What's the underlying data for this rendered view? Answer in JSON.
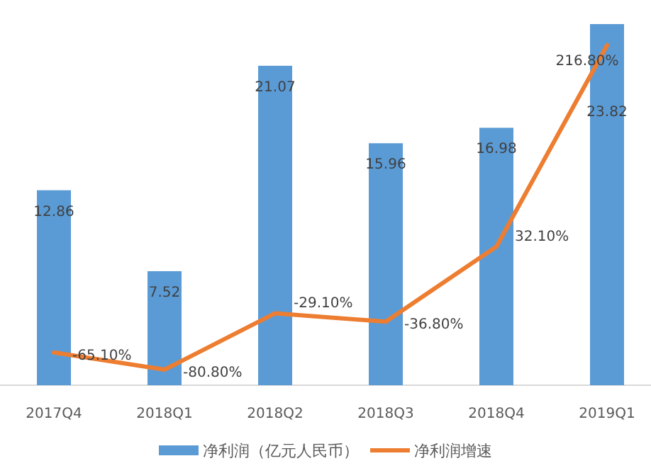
{
  "chart_data": {
    "type": "bar",
    "categories": [
      "2017Q4",
      "2018Q1",
      "2018Q2",
      "2018Q3",
      "2018Q4",
      "2019Q1"
    ],
    "legend": "bottom",
    "grid": false,
    "series": [
      {
        "name": "净利润（亿元人民币）",
        "color": "#5b9bd5",
        "values": [
          12.86,
          7.52,
          21.07,
          15.96,
          16.98,
          23.82
        ],
        "value_labels": [
          "12.86",
          "7.52",
          "21.07",
          "15.96",
          "16.98",
          "23.82"
        ]
      },
      {
        "name": "净利润增速",
        "type": "line",
        "axis": "y2",
        "color": "#ed7d31",
        "values": [
          -65.1,
          -80.8,
          -29.1,
          -36.8,
          32.1,
          216.8
        ],
        "value_labels": [
          "-65.10%",
          "-80.80%",
          "-29.10%",
          "-36.80%",
          "32.10%",
          "216.80%"
        ]
      }
    ]
  }
}
